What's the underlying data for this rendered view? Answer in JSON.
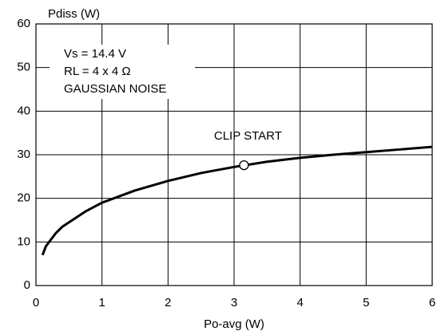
{
  "chart_data": {
    "type": "line",
    "ylabel": "Pdiss (W)",
    "xlabel": "Po-avg (W)",
    "annotations": [
      "Vs = 14.4 V",
      "RL = 4 x 4 Ω",
      "GAUSSIAN NOISE"
    ],
    "x": [
      0.1,
      0.15,
      0.2,
      0.3,
      0.4,
      0.5,
      0.75,
      1,
      1.5,
      2,
      2.5,
      3,
      3.5,
      4,
      4.5,
      5,
      5.5,
      6
    ],
    "series": [
      {
        "color": "#000000",
        "values": [
          7,
          9,
          10,
          12,
          13.5,
          14.5,
          17,
          19,
          21.8,
          24,
          25.8,
          27.2,
          28.4,
          29.3,
          30,
          30.6,
          31.2,
          31.8
        ]
      }
    ],
    "marker": {
      "x": 3.15,
      "y": 27.6,
      "label": "CLIP START"
    },
    "xlim": [
      0,
      6
    ],
    "xticks": [
      0,
      1,
      2,
      3,
      4,
      5,
      6
    ],
    "ylim": [
      0,
      60
    ],
    "yticks": [
      0,
      10,
      20,
      30,
      40,
      50,
      60
    ],
    "grid": true
  }
}
